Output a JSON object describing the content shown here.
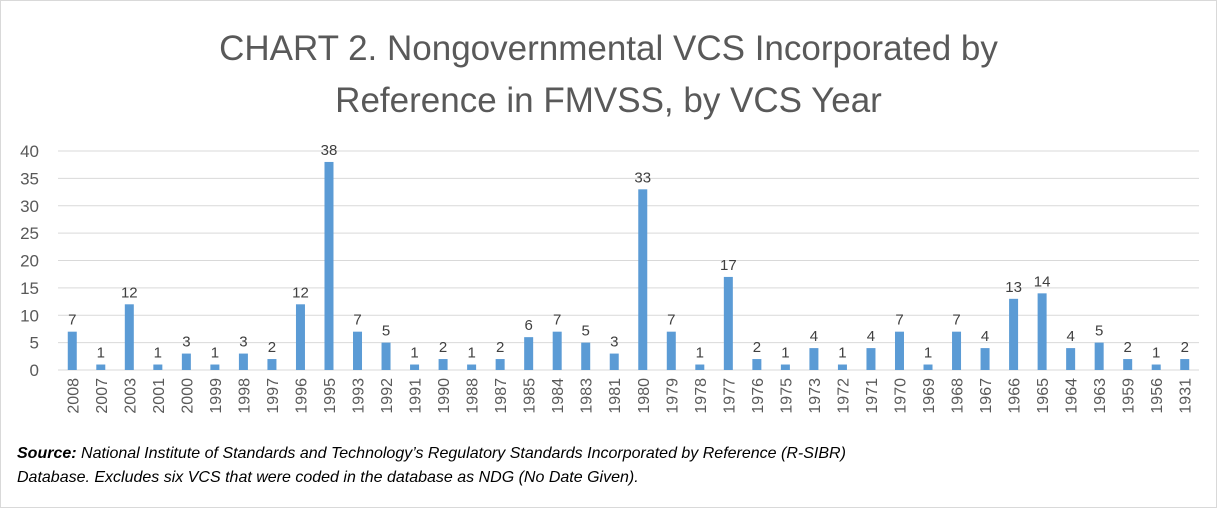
{
  "chart_data": {
    "type": "bar",
    "title": "CHART 2. Nongovernmental VCS Incorporated by Reference in FMVSS, by VCS Year",
    "title_lines": [
      "CHART 2. Nongovernmental VCS Incorporated by",
      "Reference in FMVSS, by VCS Year"
    ],
    "categories": [
      "2008",
      "2007",
      "2003",
      "2001",
      "2000",
      "1999",
      "1998",
      "1997",
      "1996",
      "1995",
      "1993",
      "1992",
      "1991",
      "1990",
      "1988",
      "1987",
      "1985",
      "1984",
      "1983",
      "1981",
      "1980",
      "1979",
      "1978",
      "1977",
      "1976",
      "1975",
      "1973",
      "1972",
      "1971",
      "1970",
      "1969",
      "1968",
      "1967",
      "1966",
      "1965",
      "1964",
      "1963",
      "1959",
      "1956",
      "1931"
    ],
    "values": [
      7,
      1,
      12,
      1,
      3,
      1,
      3,
      2,
      12,
      38,
      7,
      5,
      1,
      2,
      1,
      2,
      6,
      7,
      5,
      3,
      33,
      7,
      1,
      17,
      2,
      1,
      4,
      1,
      4,
      7,
      1,
      7,
      4,
      13,
      14,
      4,
      5,
      2,
      1,
      2
    ],
    "ylim": [
      0,
      40
    ],
    "yticks": [
      0,
      5,
      10,
      15,
      20,
      25,
      30,
      35,
      40
    ],
    "xlabel": "",
    "ylabel": "",
    "grid": true,
    "data_labels": true,
    "bar_color": "#5B9BD5"
  },
  "source": {
    "label": "Source:",
    "text": " National Institute of Standards and Technology’s Regulatory Standards Incorporated by Reference (R-SIBR)",
    "line2": "Database. Excludes six VCS that were coded in the database as NDG (No Date Given)."
  }
}
